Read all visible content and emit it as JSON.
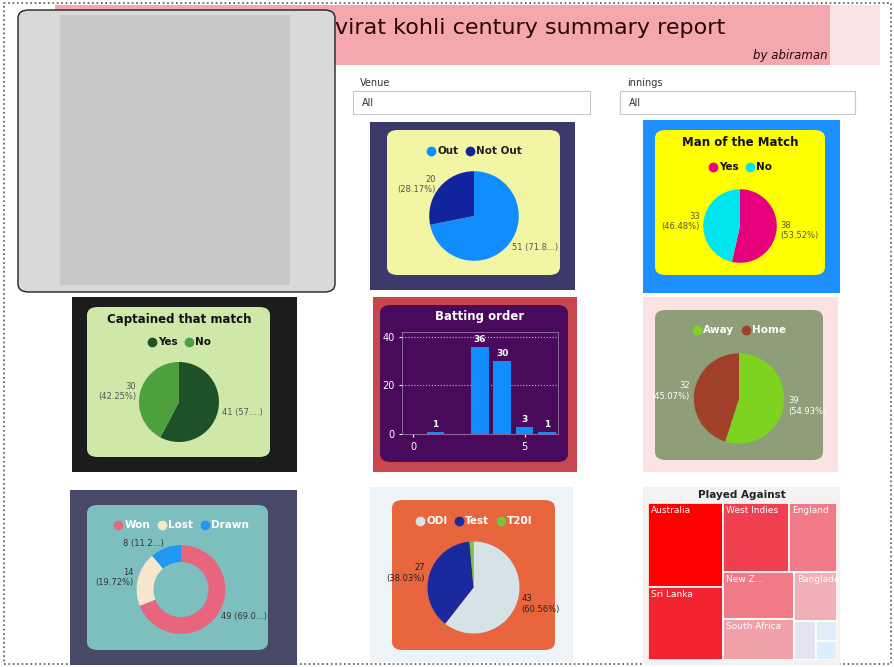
{
  "header": {
    "title": "virat kohli century summary report",
    "byline": "by abiraman"
  },
  "filters": [
    {
      "label": "Venue",
      "value": "All"
    },
    {
      "label": "innings",
      "value": "All"
    }
  ],
  "chart_data": [
    {
      "type": "pie",
      "categories": [
        "Out",
        "Not Out"
      ],
      "values": [
        51,
        20
      ],
      "value_labels": [
        "51 (71.8...)",
        "20\n(28.17%)"
      ],
      "colors": [
        "#118DFF",
        "#12239E"
      ],
      "legend": "upper center",
      "data_labels": true
    },
    {
      "type": "pie",
      "title": "Man of the Match",
      "categories": [
        "Yes",
        "No"
      ],
      "values": [
        38,
        33
      ],
      "value_labels": [
        "38\n(53.52%)",
        "33\n(46.48%)"
      ],
      "colors": [
        "#E6007E",
        "#00E5EE"
      ],
      "legend": "upper center",
      "data_labels": true
    },
    {
      "type": "pie",
      "title": "Captained that match",
      "categories": [
        "Yes",
        "No"
      ],
      "values": [
        41,
        30
      ],
      "value_labels": [
        "41 (57....)",
        "30\n(42.25%)"
      ],
      "colors": [
        "#1E5128",
        "#4E9F3D"
      ],
      "legend": "upper center",
      "data_labels": true
    },
    {
      "type": "bar",
      "title": "Batting order",
      "x": [
        1,
        3,
        4,
        5,
        6
      ],
      "values": [
        1,
        36,
        30,
        3,
        1
      ],
      "color": "#118DFF",
      "xlim": [
        -0.5,
        6.5
      ],
      "xticks": [
        0,
        5
      ],
      "ylim": [
        0,
        42
      ],
      "yticks": [
        0,
        20,
        40
      ],
      "grid": true,
      "data_labels": true
    },
    {
      "type": "pie",
      "categories": [
        "Away",
        "Home"
      ],
      "values": [
        39,
        32
      ],
      "value_labels": [
        "39\n(54.93%)",
        "32\n(45.07%)"
      ],
      "colors": [
        "#7ED321",
        "#A0402A"
      ],
      "legend": "upper center",
      "data_labels": true
    },
    {
      "type": "donut",
      "categories": [
        "Won",
        "Lost",
        "Drawn"
      ],
      "values": [
        49,
        14,
        8
      ],
      "value_labels": [
        "49 (69.0...)",
        "14\n(19.72%)",
        "8 (11.2...)"
      ],
      "colors": [
        "#E8667D",
        "#F5E6CC",
        "#2196F3"
      ],
      "legend": "upper center",
      "data_labels": true
    },
    {
      "type": "pie",
      "categories": [
        "ODI",
        "Test",
        "T20I"
      ],
      "values": [
        43,
        27,
        1
      ],
      "value_labels": [
        "43\n(60.56%)",
        "27\n(38.03%)",
        null
      ],
      "colors": [
        "#D6E3E6",
        "#1A2A9E",
        "#7CC242"
      ],
      "legend": "upper center",
      "data_labels": true
    },
    {
      "type": "treemap",
      "title": "Played Against",
      "categories": [
        "Australia",
        "Sri Lanka",
        "West Indies",
        "England",
        "New Z...",
        "South Africa",
        "Bangladesh",
        null,
        null,
        null
      ],
      "values": [
        15,
        13,
        11,
        8,
        8,
        7,
        5,
        2,
        1,
        1
      ],
      "colors": [
        "#FF0000",
        "#F2232F",
        "#F04050",
        "#F07A85",
        "#F07A85",
        "#F0A0A8",
        "#F0B0B8",
        "#E6E2F0",
        "#E0ECF8",
        "#DDEEFF"
      ]
    }
  ]
}
